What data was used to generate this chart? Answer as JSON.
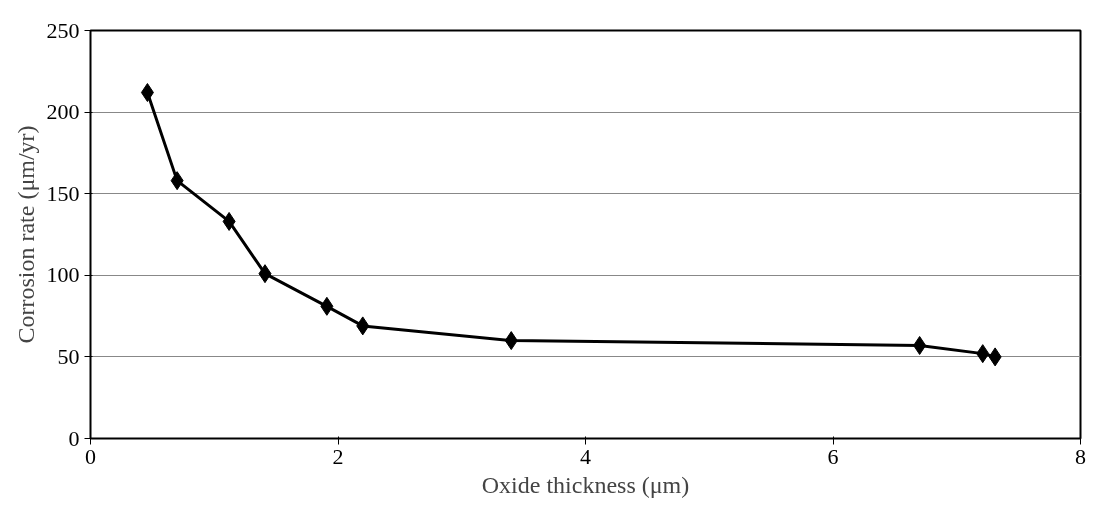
{
  "chart_data": {
    "type": "line",
    "xlabel": "Oxide thickness (μm)",
    "ylabel": "Corrosion rate (μm/yr)",
    "x": [
      0.46,
      0.7,
      1.12,
      1.41,
      1.91,
      2.2,
      3.4,
      6.7,
      7.21,
      7.31
    ],
    "series": [
      {
        "color": "#000000",
        "values": [
          212,
          158,
          133,
          101,
          81,
          69,
          60,
          57,
          52,
          50
        ]
      }
    ],
    "xlim": [
      0,
      8
    ],
    "xticks": [
      0,
      2,
      4,
      6,
      8
    ],
    "ylim": [
      0,
      250
    ],
    "yticks": [
      0,
      50,
      100,
      150,
      200,
      250
    ],
    "grid": "y",
    "marker": "diamond",
    "line_style": "solid"
  }
}
